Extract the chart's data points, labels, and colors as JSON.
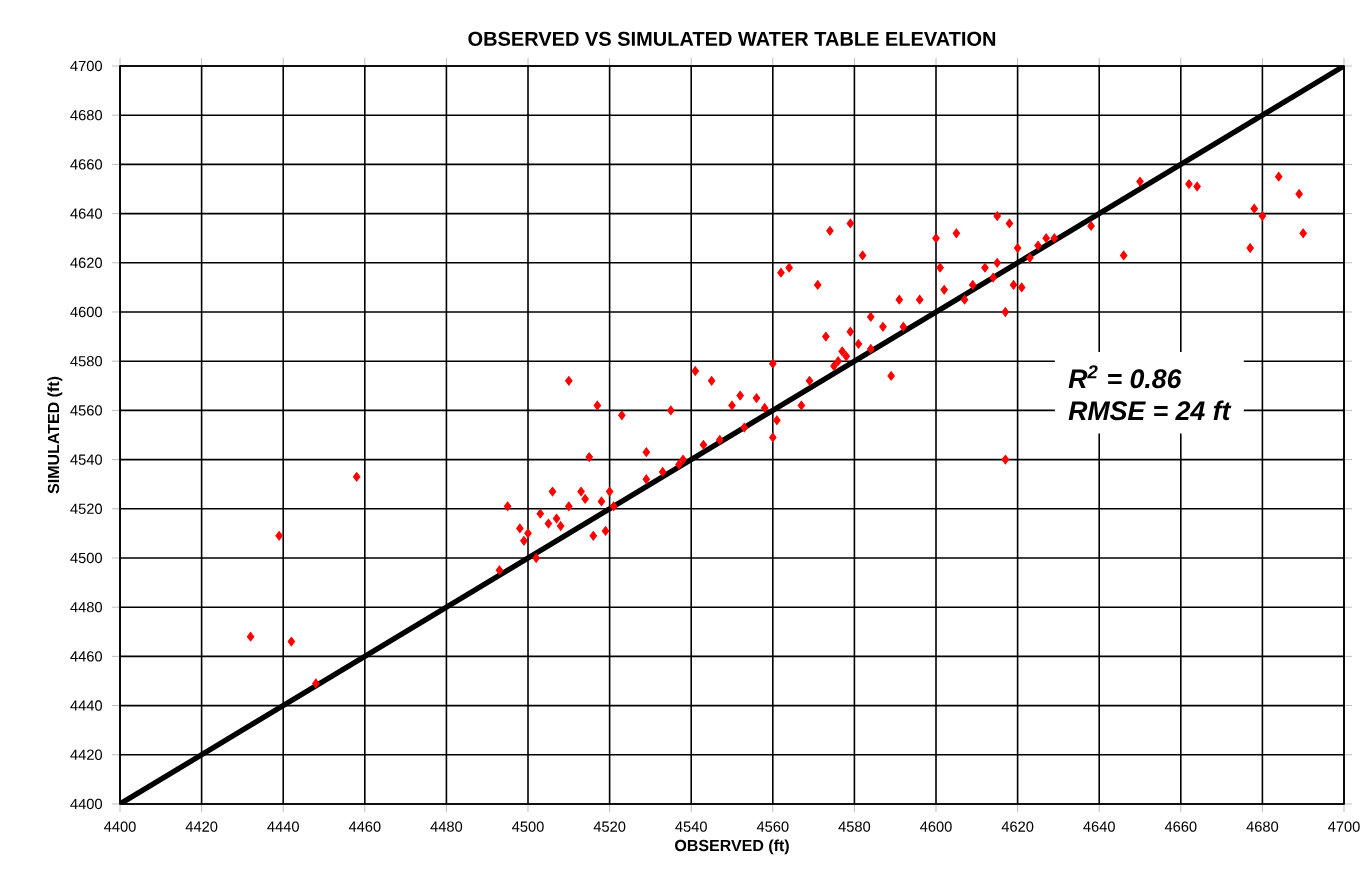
{
  "chart_data": {
    "type": "scatter",
    "title": "OBSERVED VS SIMULATED WATER TABLE ELEVATION",
    "xlabel": "OBSERVED (ft)",
    "ylabel": "SIMULATED (ft)",
    "annotations": [
      "R$^{2}$ = 0.86",
      "RMSE = 24 ft"
    ],
    "xlim": [
      4400,
      4700
    ],
    "ylim": [
      4400,
      4700
    ],
    "xticks": [
      4400,
      4420,
      4440,
      4460,
      4480,
      4500,
      4520,
      4540,
      4560,
      4580,
      4600,
      4620,
      4640,
      4660,
      4680,
      4700
    ],
    "yticks": [
      4400,
      4420,
      4440,
      4460,
      4480,
      4500,
      4520,
      4540,
      4560,
      4580,
      4600,
      4620,
      4640,
      4660,
      4680,
      4700
    ],
    "grid": true,
    "marker": "diamond",
    "series": [
      {
        "color": "#ff0000",
        "x": [
          4432,
          4439,
          4442,
          4448,
          4458,
          4493,
          4495,
          4498,
          4499,
          4500,
          4502,
          4503,
          4505,
          4506,
          4507,
          4508,
          4510,
          4510,
          4513,
          4514,
          4515,
          4516,
          4517,
          4518,
          4519,
          4520,
          4521,
          4523,
          4529,
          4529,
          4533,
          4535,
          4537,
          4538,
          4541,
          4543,
          4545,
          4547,
          4550,
          4552,
          4553,
          4556,
          4558,
          4560,
          4560,
          4561,
          4562,
          4564,
          4567,
          4569,
          4571,
          4573,
          4574,
          4575,
          4576,
          4577,
          4578,
          4579,
          4579,
          4581,
          4582,
          4584,
          4584,
          4587,
          4589,
          4591,
          4592,
          4596,
          4600,
          4601,
          4602,
          4605,
          4607,
          4609,
          4612,
          4614,
          4615,
          4615,
          4617,
          4617,
          4618,
          4619,
          4620,
          4621,
          4623,
          4625,
          4627,
          4629,
          4638,
          4646,
          4650,
          4662,
          4664,
          4677,
          4678,
          4680,
          4684,
          4689,
          4690
        ],
        "values": [
          4468,
          4509,
          4466,
          4449,
          4533,
          4495,
          4521,
          4512,
          4507,
          4510,
          4500,
          4518,
          4514,
          4527,
          4516,
          4513,
          4521,
          4572,
          4527,
          4524,
          4541,
          4509,
          4562,
          4523,
          4511,
          4527,
          4521,
          4558,
          4543,
          4532,
          4535,
          4560,
          4538,
          4540,
          4576,
          4546,
          4572,
          4548,
          4562,
          4566,
          4553,
          4565,
          4561,
          4579,
          4549,
          4556,
          4616,
          4618,
          4562,
          4572,
          4611,
          4590,
          4633,
          4578,
          4580,
          4584,
          4582,
          4592,
          4636,
          4587,
          4623,
          4598,
          4585,
          4594,
          4574,
          4605,
          4594,
          4605,
          4630,
          4618,
          4609,
          4632,
          4605,
          4611,
          4618,
          4614,
          4620,
          4639,
          4600,
          4540,
          4636,
          4611,
          4626,
          4610,
          4622,
          4627,
          4630,
          4630,
          4635,
          4623,
          4653,
          4652,
          4651,
          4626,
          4642,
          4639,
          4655,
          4648,
          4632
        ]
      },
      {
        "type": "line",
        "color": "#000000",
        "line_style": "solid",
        "marker": "none",
        "x": [
          4400,
          4700
        ],
        "values": [
          4400,
          4700
        ]
      }
    ]
  }
}
